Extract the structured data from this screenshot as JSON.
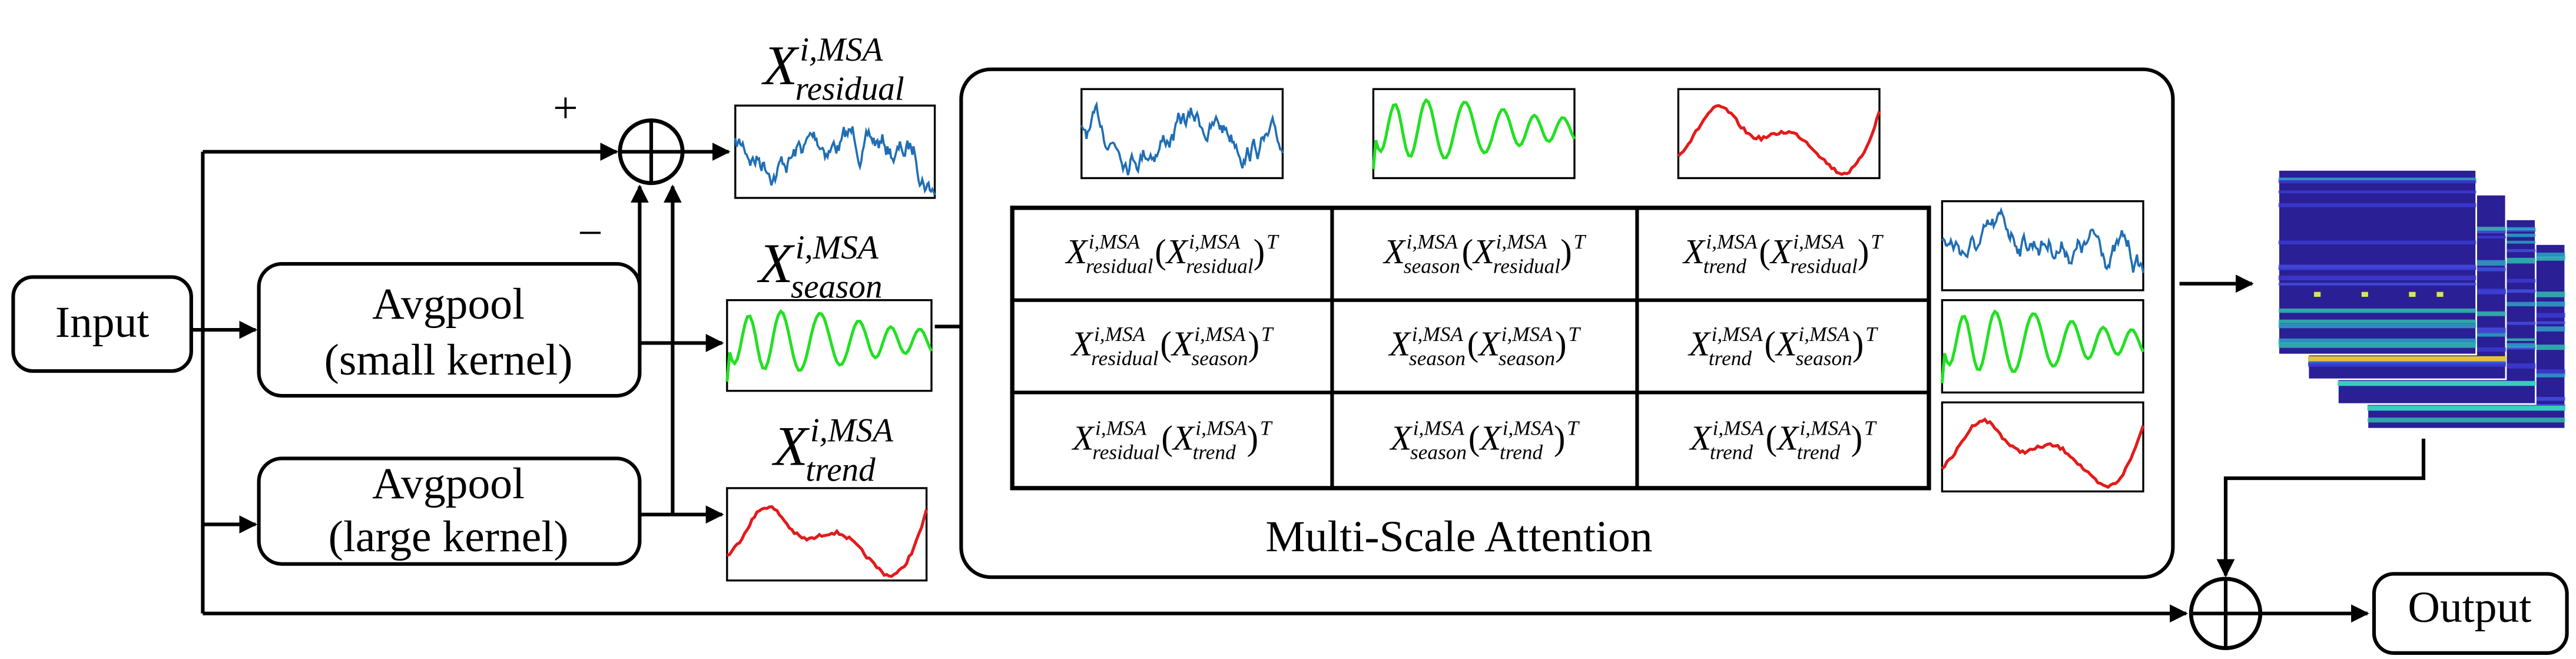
{
  "input": "Input",
  "avgpool_small": {
    "title": "Avgpool",
    "kernel": "(small kernel)"
  },
  "avgpool_large": {
    "title": "Avgpool",
    "kernel": "(large kernel)"
  },
  "signs": {
    "plus": "+",
    "minus": "−"
  },
  "symbol": "X",
  "superscript": "i,MSA",
  "components": [
    "residual",
    "season",
    "trend"
  ],
  "attention": {
    "title": "Multi-Scale Attention",
    "open": "(",
    "close": ")",
    "transpose": "T",
    "rows": [
      [
        {
          "left": "residual",
          "right": "residual"
        },
        {
          "left": "season",
          "right": "residual"
        },
        {
          "left": "trend",
          "right": "residual"
        }
      ],
      [
        {
          "left": "residual",
          "right": "season"
        },
        {
          "left": "season",
          "right": "season"
        },
        {
          "left": "trend",
          "right": "season"
        }
      ],
      [
        {
          "left": "residual",
          "right": "trend"
        },
        {
          "left": "season",
          "right": "trend"
        },
        {
          "left": "trend",
          "right": "trend"
        }
      ]
    ]
  },
  "output": "Output"
}
